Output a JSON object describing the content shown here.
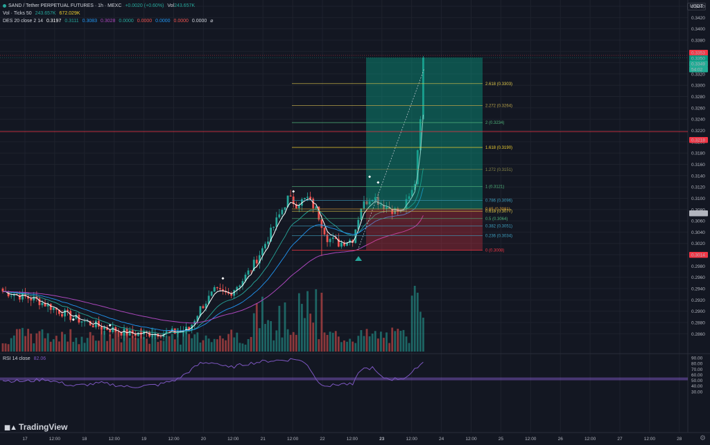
{
  "header": {
    "symbol": "SAND / Tether PERPETUAL FUTURES · 1h · MEXC",
    "change": "+0.0020 (+0.60%)",
    "vol_label": "Vol",
    "vol_value": "243.657K"
  },
  "indicators": {
    "vol_ticks": {
      "label": "Vol · Ticks 50",
      "v1": "243.657K",
      "v2": "672.029K"
    },
    "des": {
      "label": "DES 20 close 2 14",
      "values": [
        "0.3197",
        "0.3111",
        "0.3083",
        "0.3028",
        "0.0000",
        "0.0000",
        "0.0000",
        "0.0000",
        "0.0000"
      ],
      "suffix": "⌀"
    },
    "rsi": {
      "label": "RSI 14 close",
      "value": "82.06"
    }
  },
  "price_axis": {
    "unit": "USDT",
    "ticks": [
      "0.3440",
      "0.3420",
      "0.3400",
      "0.3380",
      "0.3360",
      "0.3340",
      "0.3320",
      "0.3300",
      "0.3280",
      "0.3260",
      "0.3240",
      "0.3220",
      "0.3200",
      "0.3180",
      "0.3160",
      "0.3140",
      "0.3120",
      "0.3100",
      "0.3080",
      "0.3060",
      "0.3040",
      "0.3020",
      "0.3000",
      "0.2980",
      "0.2960",
      "0.2940",
      "0.2920",
      "0.2900",
      "0.2880",
      "0.2860"
    ],
    "badges": [
      {
        "text": "0.3353",
        "color": "#f23645"
      },
      {
        "text": "0.3350",
        "color": "#089981"
      },
      {
        "text": "0.3349",
        "color": "#22ab94"
      },
      {
        "text": "54:02",
        "color": "#22ab94"
      },
      {
        "text": "0.3218",
        "color": "#f23645"
      },
      {
        "text": "0.3088",
        "color": "#b2b5be"
      },
      {
        "text": "0.3014",
        "color": "#f23645"
      }
    ]
  },
  "rsi_axis": {
    "ticks": [
      "90.00",
      "80.00",
      "70.00",
      "60.00",
      "50.00",
      "40.00",
      "30.00"
    ]
  },
  "time_axis": {
    "labels": [
      "17",
      "12:00",
      "18",
      "12:00",
      "19",
      "12:00",
      "20",
      "12:00",
      "21",
      "12:00",
      "22",
      "12:00",
      "23",
      "12:00",
      "24",
      "12:00",
      "25",
      "12:00",
      "26",
      "12:00",
      "27",
      "12:00",
      "28"
    ],
    "bold_index": 12
  },
  "fib_levels": [
    {
      "label": "2.618 (0.3303)",
      "price": 0.3303,
      "color": "#e0c84a"
    },
    {
      "label": "2.272 (0.3264)",
      "price": 0.3264,
      "color": "#b8a24a"
    },
    {
      "label": "2 (0.3234)",
      "price": 0.3234,
      "color": "#4fb37a"
    },
    {
      "label": "1.618 (0.3190)",
      "price": 0.319,
      "color": "#f0d030"
    },
    {
      "label": "1.272 (0.3151)",
      "price": 0.3151,
      "color": "#8c8a4a"
    },
    {
      "label": "1 (0.3121)",
      "price": 0.3121,
      "color": "#4fb37a"
    },
    {
      "label": "0.786 (0.3096)",
      "price": 0.3096,
      "color": "#3fa0c0"
    },
    {
      "label": "0.65 (0.3081)",
      "price": 0.3081,
      "color": "#e0a030"
    },
    {
      "label": "0.618 (0.3077)",
      "price": 0.3077,
      "color": "#e0c84a"
    },
    {
      "label": "0.5 (0.3064)",
      "price": 0.3064,
      "color": "#4fb37a"
    },
    {
      "label": "0.382 (0.3051)",
      "price": 0.3051,
      "color": "#3fa0c0"
    },
    {
      "label": "0.236 (0.3034)",
      "price": 0.3034,
      "color": "#3fa0c0"
    },
    {
      "label": "0 (0.3008)",
      "price": 0.3008,
      "color": "#f23645"
    }
  ],
  "colors": {
    "background": "#131722",
    "up": "#26a69a",
    "down": "#ef5350",
    "grid": "#1e222d",
    "rsi_line": "#7e57c2"
  },
  "branding": {
    "logo_text": "TradingView"
  }
}
